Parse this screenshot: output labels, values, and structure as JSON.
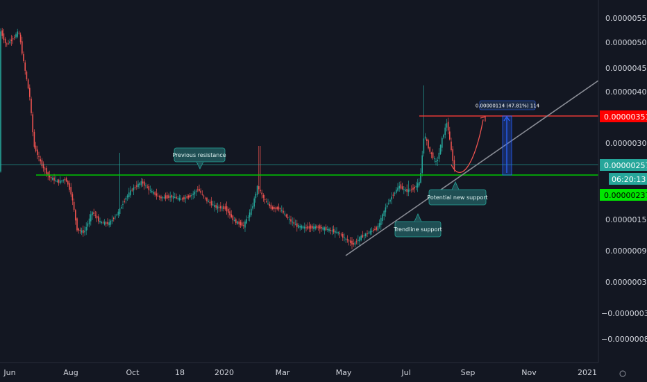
{
  "chart_data": {
    "type": "candlestick",
    "y_axis": {
      "side": "right",
      "ticks": [
        "0.00000550",
        "0.00000500",
        "0.00000450",
        "0.00000400",
        "0.00000300",
        "0.00000150",
        "0.00000090",
        "0.00000030",
        "−0.00000030",
        "−0.00000080"
      ],
      "scale": "logarithmic"
    },
    "x_axis": {
      "ticks": [
        "Jun",
        "Aug",
        "Oct",
        "18",
        "2020",
        "Mar",
        "May",
        "Jul",
        "Sep",
        "Nov",
        "2021"
      ]
    },
    "price_badges": {
      "resistance": {
        "label": "0.00000351",
        "color": "#ff0000"
      },
      "current": {
        "label": "0.00000257",
        "color": "#26a69a"
      },
      "countdown": {
        "label": "06:20:13",
        "color": "#26a69a"
      },
      "support": {
        "label": "0.00000237",
        "color": "#00e600"
      }
    },
    "horizontal_levels": [
      {
        "label": "0.00000351",
        "color": "#e53935"
      },
      {
        "label": "0.00000237",
        "color": "#00c800"
      }
    ],
    "annotations": [
      {
        "text": "Previous resistance",
        "anchor": "Nov 2019"
      },
      {
        "text": "Trendline support",
        "anchor": "Jun 2020"
      },
      {
        "text": "Potential new support",
        "anchor": "Aug 2020"
      }
    ],
    "measurement": {
      "text": "0.00000114 (47.81%) 114"
    },
    "colors": {
      "background": "#131722",
      "up": "#26a69a",
      "down": "#ef5350",
      "callout": "#1f4f54",
      "callout_border": "#26a69a",
      "trendline": "#8a8d96",
      "projection": "#ef5350",
      "measure": "#2962ff"
    },
    "grid": false,
    "legend": "none"
  }
}
